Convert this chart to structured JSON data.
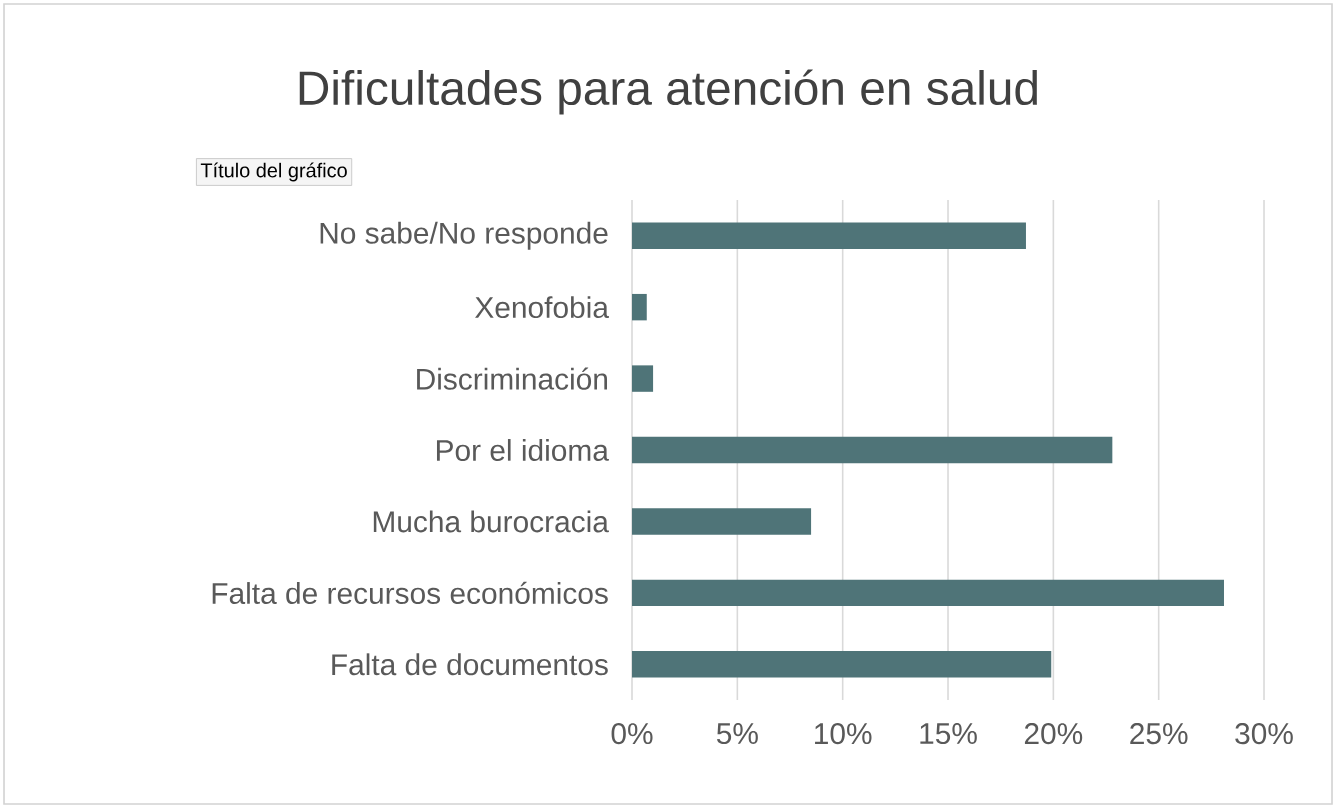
{
  "chart_data": {
    "type": "bar",
    "orientation": "horizontal",
    "title": "Dificultades para atención en salud",
    "categories": [
      "No sabe/No responde",
      "Xenofobia",
      "Discriminación",
      "Por el idioma",
      "Mucha burocracia",
      "Falta de recursos económicos",
      "Falta de documentos"
    ],
    "values": [
      18.7,
      0.7,
      1.0,
      22.8,
      8.5,
      28.1,
      19.9
    ],
    "color": "#4f7478",
    "xlim": [
      0,
      30
    ],
    "xticks": [
      {
        "value": 0,
        "label": "0%"
      },
      {
        "value": 5,
        "label": "5%"
      },
      {
        "value": 10,
        "label": "10%"
      },
      {
        "value": 15,
        "label": "15%"
      },
      {
        "value": 20,
        "label": "20%"
      },
      {
        "value": 25,
        "label": "25%"
      },
      {
        "value": 30,
        "label": "30%"
      }
    ],
    "grid": "x",
    "annotations": [
      "Título del gráfico"
    ]
  }
}
